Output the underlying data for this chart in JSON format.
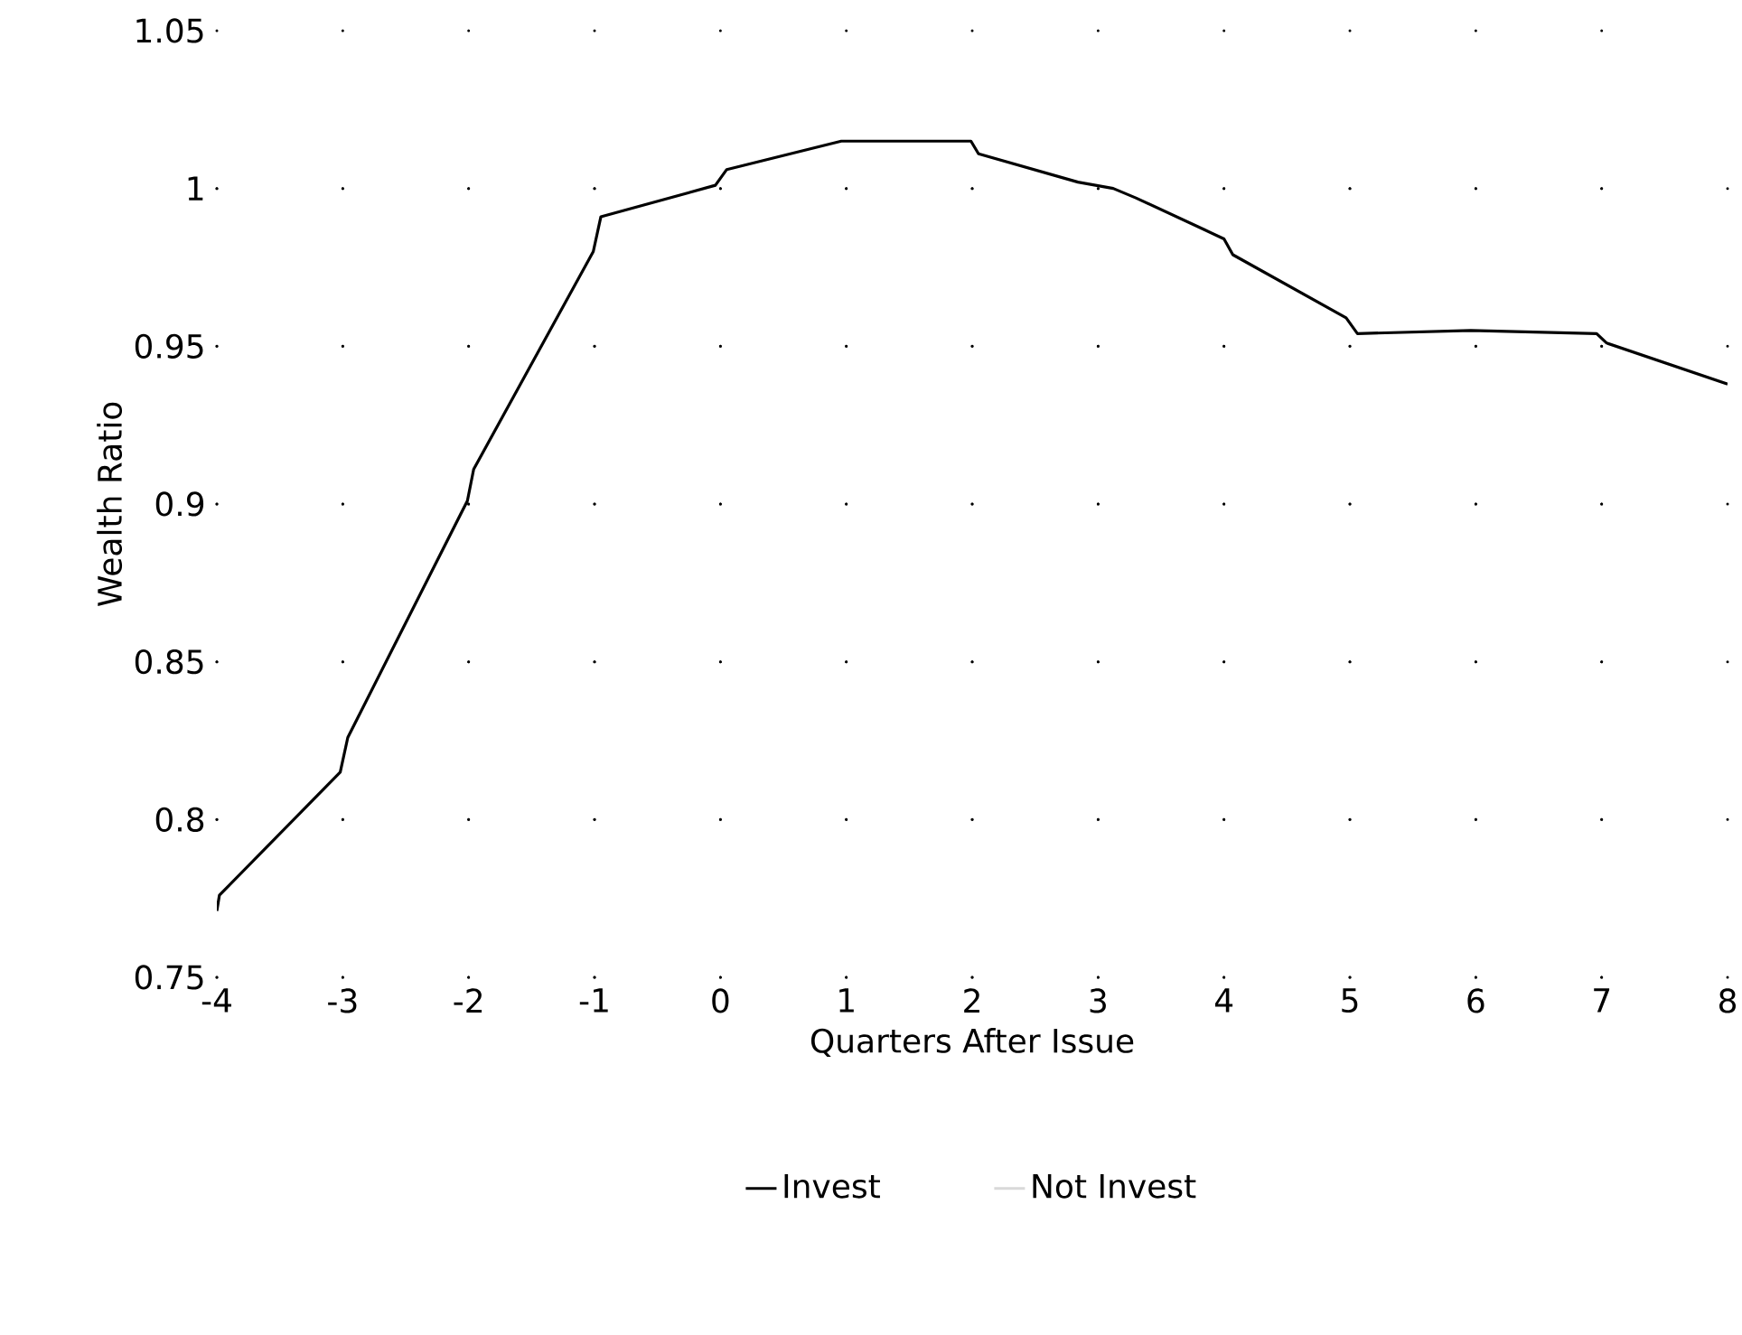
{
  "chart_data": {
    "type": "line",
    "xlabel": "Quarters After Issue",
    "ylabel": "Wealth Ratio",
    "xlim": [
      -4,
      8
    ],
    "ylim": [
      0.75,
      1.05
    ],
    "xticks": [
      -4,
      -3,
      -2,
      -1,
      0,
      1,
      2,
      3,
      4,
      5,
      6,
      7,
      8
    ],
    "yticks": [
      0.75,
      0.8,
      0.85,
      0.9,
      0.95,
      1,
      1.05
    ],
    "grid": true,
    "legend": "bottom",
    "marker": "none",
    "line_style": "solid",
    "series": [
      {
        "name": "Invest",
        "color": "#000000",
        "x": [
          -4,
          -3.98,
          -3.02,
          -2.96,
          -2.01,
          -1.96,
          -1.01,
          -0.95,
          -0.04,
          0.05,
          0.96,
          1.99,
          2.05,
          2.84,
          3.12,
          3.3,
          3.84,
          4.0,
          4.07,
          4.97,
          5.06,
          5.96,
          6.96,
          7.04,
          8
        ],
        "values": [
          0.771,
          0.776,
          0.815,
          0.826,
          0.901,
          0.911,
          0.98,
          0.991,
          1.001,
          1.006,
          1.015,
          1.015,
          1.011,
          1.002,
          1.0,
          0.997,
          0.987,
          0.984,
          0.979,
          0.959,
          0.954,
          0.955,
          0.954,
          0.951,
          0.938
        ]
      },
      {
        "name": "Not Invest",
        "color": "#d9d9d9"
      }
    ]
  }
}
